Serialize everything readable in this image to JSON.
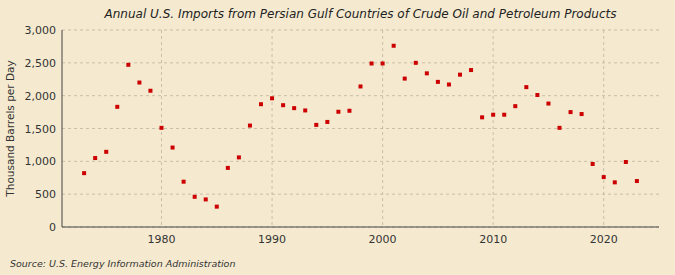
{
  "chart_data": {
    "type": "scatter",
    "title": "Annual U.S. Imports from Persian Gulf Countries of Crude Oil and Petroleum Products",
    "y_label": "Thousand Barrels per Day",
    "annotations": [
      "Source: U.S. Energy Information Administration"
    ],
    "x": [
      1973,
      1974,
      1975,
      1976,
      1977,
      1978,
      1979,
      1980,
      1981,
      1982,
      1983,
      1984,
      1985,
      1986,
      1987,
      1988,
      1989,
      1990,
      1991,
      1992,
      1993,
      1994,
      1995,
      1996,
      1997,
      1998,
      1999,
      2000,
      2001,
      2002,
      2003,
      2004,
      2005,
      2006,
      2007,
      2008,
      2009,
      2010,
      2011,
      2012,
      2013,
      2014,
      2015,
      2016,
      2017,
      2018,
      2019,
      2020,
      2021,
      2022,
      2023
    ],
    "values": [
      820,
      1050,
      1145,
      1830,
      2470,
      2200,
      2075,
      1510,
      1210,
      690,
      460,
      420,
      310,
      900,
      1060,
      1545,
      1870,
      1960,
      1855,
      1810,
      1775,
      1555,
      1600,
      1755,
      1770,
      2140,
      2490,
      2490,
      2760,
      2260,
      2500,
      2340,
      2210,
      2170,
      2320,
      2390,
      1670,
      1710,
      1710,
      1840,
      2130,
      2010,
      1880,
      1510,
      1750,
      1720,
      960,
      760,
      680,
      990,
      700
    ],
    "color": "#cc0000",
    "marker": "square",
    "xlim": [
      1971,
      2025
    ],
    "ylim": [
      0,
      3000
    ],
    "xticks": [
      1980,
      1990,
      2000,
      2010,
      2020
    ],
    "yticks": [
      0,
      500,
      {
        "value": 1000,
        "label": "1,000"
      },
      {
        "value": 1500,
        "label": "1,500"
      },
      {
        "value": 2000,
        "label": "2,000"
      },
      {
        "value": 2500,
        "label": "2,500"
      },
      {
        "value": 3000,
        "label": "3,000"
      }
    ],
    "grid": true
  }
}
